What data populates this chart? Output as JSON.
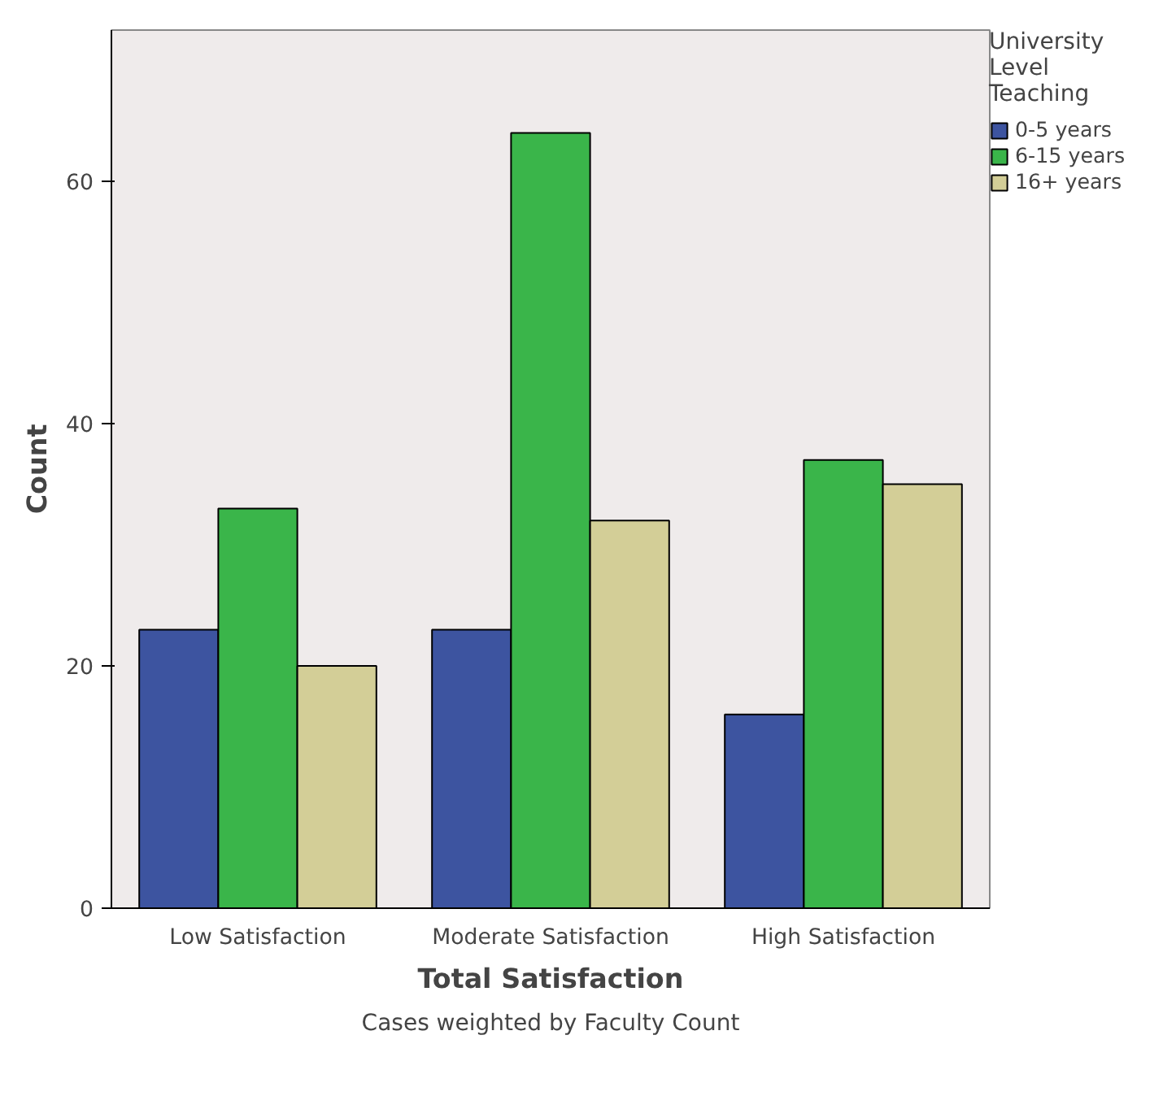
{
  "chart_data": {
    "type": "bar",
    "xlabel": "Total Satisfaction",
    "ylabel": "Count",
    "legend_title": "University Level Teaching",
    "categories": [
      "Low Satisfaction",
      "Moderate Satisfaction",
      "High Satisfaction"
    ],
    "series": [
      {
        "name": "0-5 years",
        "color": "#3d54a0",
        "values": [
          23,
          23,
          16
        ]
      },
      {
        "name": "6-15 years",
        "color": "#3ab54a",
        "values": [
          33,
          64,
          37
        ]
      },
      {
        "name": "16+ years",
        "color": "#d3ce97",
        "values": [
          20,
          32,
          35
        ]
      }
    ],
    "ylim": [
      0,
      72.5
    ],
    "yticks": [
      0,
      20,
      40,
      60
    ],
    "grid": false,
    "legend": "right",
    "annotations": [
      "Cases weighted by Faculty Count"
    ]
  }
}
